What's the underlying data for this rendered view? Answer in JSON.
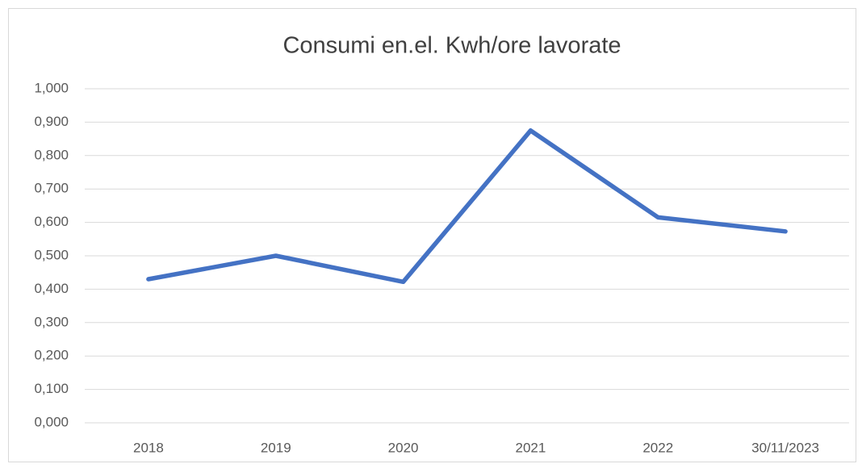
{
  "chart_data": {
    "type": "line",
    "title": "Consumi en.el. Kwh/ore lavorate",
    "categories": [
      "2018",
      "2019",
      "2020",
      "2021",
      "2022",
      "30/11/2023"
    ],
    "values": [
      0.43,
      0.5,
      0.422,
      0.875,
      0.615,
      0.573
    ],
    "color": "#4472c4",
    "ylim": [
      0,
      1
    ],
    "yticks": [
      {
        "value": 0,
        "label": "0,000"
      },
      {
        "value": 0.1,
        "label": "0,100"
      },
      {
        "value": 0.2,
        "label": "0,200"
      },
      {
        "value": 0.3,
        "label": "0,300"
      },
      {
        "value": 0.4,
        "label": "0,400"
      },
      {
        "value": 0.5,
        "label": "0,500"
      },
      {
        "value": 0.6,
        "label": "0,600"
      },
      {
        "value": 0.7,
        "label": "0,700"
      },
      {
        "value": 0.8,
        "label": "0,800"
      },
      {
        "value": 0.9,
        "label": "0,900"
      },
      {
        "value": 1,
        "label": "1,000"
      }
    ],
    "grid": true
  }
}
